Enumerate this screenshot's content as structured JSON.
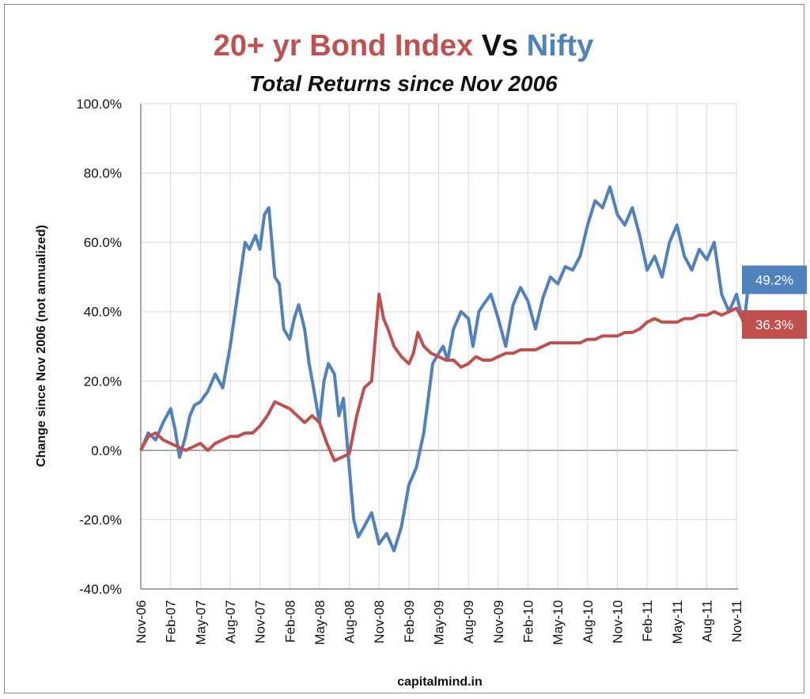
{
  "chart_data": {
    "type": "line",
    "title": {
      "part1": "20+ yr Bond Index",
      "part2": " Vs ",
      "part3": "Nifty"
    },
    "subtitle": "Total Returns since Nov 2006",
    "ylabel": "Change since Nov 2006 (not annualized)",
    "xlabel": "capitalmind.in",
    "ylim": [
      -40,
      100
    ],
    "y_ticks": [
      "100.0%",
      "80.0%",
      "60.0%",
      "40.0%",
      "20.0%",
      "0.0%",
      "-20.0%",
      "-40.0%"
    ],
    "y_tick_values": [
      100,
      80,
      60,
      40,
      20,
      0,
      -20,
      -40
    ],
    "x_categories": [
      "Nov-06",
      "Feb-07",
      "May-07",
      "Aug-07",
      "Nov-07",
      "Feb-08",
      "May-08",
      "Aug-08",
      "Nov-08",
      "Feb-09",
      "May-09",
      "Aug-09",
      "Nov-09",
      "Feb-10",
      "May-10",
      "Aug-10",
      "Nov-10",
      "Feb-11",
      "May-11",
      "Aug-11",
      "Nov-11"
    ],
    "grid": true,
    "series": [
      {
        "name": "Nifty",
        "color": "#4f81bd",
        "end_label": "49.2%",
        "values": [
          [
            0,
            0
          ],
          [
            0.5,
            5
          ],
          [
            1,
            3
          ],
          [
            1.5,
            8
          ],
          [
            2,
            12
          ],
          [
            2.3,
            6
          ],
          [
            2.6,
            -2
          ],
          [
            3,
            4
          ],
          [
            3.3,
            10
          ],
          [
            3.6,
            13
          ],
          [
            4,
            14
          ],
          [
            4.5,
            17
          ],
          [
            5,
            22
          ],
          [
            5.5,
            18
          ],
          [
            6,
            30
          ],
          [
            6.5,
            45
          ],
          [
            7,
            60
          ],
          [
            7.3,
            58
          ],
          [
            7.7,
            62
          ],
          [
            8,
            58
          ],
          [
            8.3,
            68
          ],
          [
            8.6,
            70
          ],
          [
            9,
            50
          ],
          [
            9.3,
            48
          ],
          [
            9.6,
            35
          ],
          [
            10,
            32
          ],
          [
            10.3,
            38
          ],
          [
            10.6,
            42
          ],
          [
            11,
            35
          ],
          [
            11.3,
            25
          ],
          [
            11.6,
            18
          ],
          [
            12,
            8
          ],
          [
            12.3,
            20
          ],
          [
            12.6,
            25
          ],
          [
            13,
            22
          ],
          [
            13.3,
            10
          ],
          [
            13.6,
            15
          ],
          [
            14,
            -5
          ],
          [
            14.3,
            -20
          ],
          [
            14.6,
            -25
          ],
          [
            15,
            -22
          ],
          [
            15.5,
            -18
          ],
          [
            16,
            -27
          ],
          [
            16.5,
            -24
          ],
          [
            17,
            -29
          ],
          [
            17.5,
            -22
          ],
          [
            18,
            -10
          ],
          [
            18.5,
            -5
          ],
          [
            19,
            5
          ],
          [
            19.3,
            15
          ],
          [
            19.6,
            25
          ],
          [
            20,
            28
          ],
          [
            20.3,
            30
          ],
          [
            20.6,
            26
          ],
          [
            21,
            35
          ],
          [
            21.5,
            40
          ],
          [
            22,
            38
          ],
          [
            22.3,
            30
          ],
          [
            22.7,
            40
          ],
          [
            23,
            42
          ],
          [
            23.5,
            45
          ],
          [
            24,
            38
          ],
          [
            24.5,
            30
          ],
          [
            25,
            42
          ],
          [
            25.5,
            47
          ],
          [
            26,
            43
          ],
          [
            26.5,
            35
          ],
          [
            27,
            44
          ],
          [
            27.5,
            50
          ],
          [
            28,
            48
          ],
          [
            28.5,
            53
          ],
          [
            29,
            52
          ],
          [
            29.5,
            56
          ],
          [
            30,
            65
          ],
          [
            30.5,
            72
          ],
          [
            31,
            70
          ],
          [
            31.5,
            76
          ],
          [
            32,
            68
          ],
          [
            32.5,
            65
          ],
          [
            33,
            70
          ],
          [
            33.5,
            62
          ],
          [
            34,
            52
          ],
          [
            34.5,
            56
          ],
          [
            35,
            50
          ],
          [
            35.5,
            60
          ],
          [
            36,
            65
          ],
          [
            36.5,
            56
          ],
          [
            37,
            52
          ],
          [
            37.5,
            58
          ],
          [
            38,
            55
          ],
          [
            38.5,
            60
          ],
          [
            39,
            45
          ],
          [
            39.5,
            40
          ],
          [
            40,
            45
          ],
          [
            40.5,
            36
          ],
          [
            40.8,
            48
          ],
          [
            41,
            49.2
          ]
        ]
      },
      {
        "name": "20+ yr Bond Index",
        "color": "#c0504d",
        "end_label": "36.3%",
        "values": [
          [
            0,
            0
          ],
          [
            0.5,
            4
          ],
          [
            1,
            5
          ],
          [
            1.5,
            3
          ],
          [
            2,
            2
          ],
          [
            2.5,
            1
          ],
          [
            3,
            0
          ],
          [
            3.5,
            1
          ],
          [
            4,
            2
          ],
          [
            4.5,
            0
          ],
          [
            5,
            2
          ],
          [
            5.5,
            3
          ],
          [
            6,
            4
          ],
          [
            6.5,
            4
          ],
          [
            7,
            5
          ],
          [
            7.5,
            5
          ],
          [
            8,
            7
          ],
          [
            8.5,
            10
          ],
          [
            9,
            14
          ],
          [
            9.5,
            13
          ],
          [
            10,
            12
          ],
          [
            10.5,
            10
          ],
          [
            11,
            8
          ],
          [
            11.5,
            10
          ],
          [
            12,
            8
          ],
          [
            12.5,
            2
          ],
          [
            13,
            -3
          ],
          [
            13.5,
            -2
          ],
          [
            14,
            -1
          ],
          [
            14.5,
            10
          ],
          [
            15,
            18
          ],
          [
            15.5,
            20
          ],
          [
            16,
            45
          ],
          [
            16.3,
            38
          ],
          [
            16.6,
            35
          ],
          [
            17,
            30
          ],
          [
            17.5,
            27
          ],
          [
            18,
            25
          ],
          [
            18.3,
            28
          ],
          [
            18.6,
            34
          ],
          [
            19,
            30
          ],
          [
            19.5,
            28
          ],
          [
            20,
            27
          ],
          [
            20.5,
            26
          ],
          [
            21,
            26
          ],
          [
            21.5,
            24
          ],
          [
            22,
            25
          ],
          [
            22.5,
            27
          ],
          [
            23,
            26
          ],
          [
            23.5,
            26
          ],
          [
            24,
            27
          ],
          [
            24.5,
            28
          ],
          [
            25,
            28
          ],
          [
            25.5,
            29
          ],
          [
            26,
            29
          ],
          [
            26.5,
            29
          ],
          [
            27,
            30
          ],
          [
            27.5,
            31
          ],
          [
            28,
            31
          ],
          [
            28.5,
            31
          ],
          [
            29,
            31
          ],
          [
            29.5,
            31
          ],
          [
            30,
            32
          ],
          [
            30.5,
            32
          ],
          [
            31,
            33
          ],
          [
            31.5,
            33
          ],
          [
            32,
            33
          ],
          [
            32.5,
            34
          ],
          [
            33,
            34
          ],
          [
            33.5,
            35
          ],
          [
            34,
            37
          ],
          [
            34.5,
            38
          ],
          [
            35,
            37
          ],
          [
            35.5,
            37
          ],
          [
            36,
            37
          ],
          [
            36.5,
            38
          ],
          [
            37,
            38
          ],
          [
            37.5,
            39
          ],
          [
            38,
            39
          ],
          [
            38.5,
            40
          ],
          [
            39,
            39
          ],
          [
            39.5,
            40
          ],
          [
            40,
            41
          ],
          [
            40.5,
            37
          ],
          [
            41,
            36.3
          ]
        ]
      }
    ]
  }
}
